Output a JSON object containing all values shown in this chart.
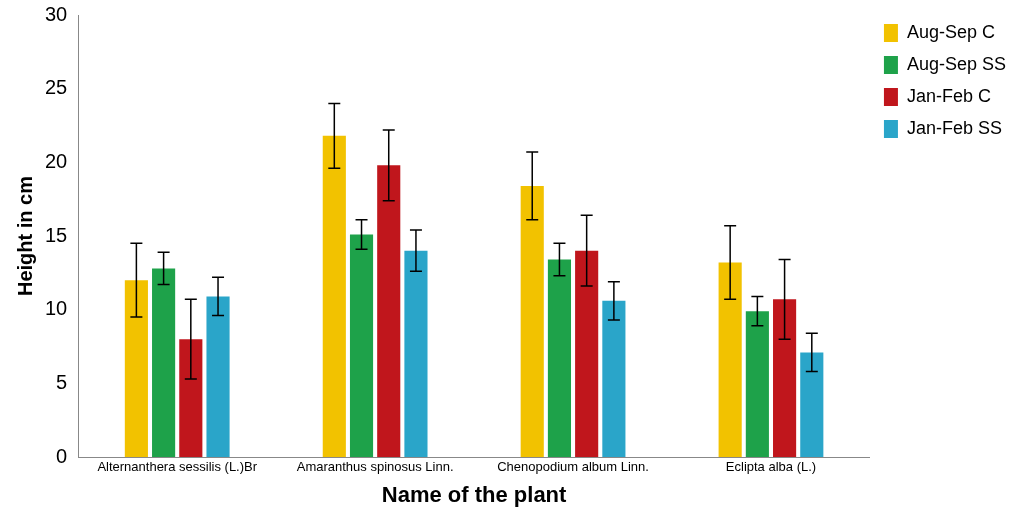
{
  "chart_data": {
    "type": "bar",
    "xlabel": "Name of the plant",
    "ylabel": "Height in cm",
    "categories": [
      "Alternanthera sessilis (L.)Br",
      "Amaranthus spinosus Linn.",
      "Chenopodium album Linn.",
      "Eclipta alba (L.)"
    ],
    "series": [
      {
        "name": "Aug-Sep C",
        "color": "#f2c200",
        "values": [
          12.0,
          21.8,
          18.4,
          13.2
        ],
        "errors": [
          2.5,
          2.2,
          2.3,
          2.5
        ]
      },
      {
        "name": "Aug-Sep SS",
        "color": "#1ea24a",
        "values": [
          12.8,
          15.1,
          13.4,
          9.9
        ],
        "errors": [
          1.1,
          1.0,
          1.1,
          1.0
        ]
      },
      {
        "name": "Jan-Feb C",
        "color": "#c0161c",
        "values": [
          8.0,
          19.8,
          14.0,
          10.7
        ],
        "errors": [
          2.7,
          2.4,
          2.4,
          2.7
        ]
      },
      {
        "name": "Jan-Feb SS",
        "color": "#2aa5c9",
        "values": [
          10.9,
          14.0,
          10.6,
          7.1
        ],
        "errors": [
          1.3,
          1.4,
          1.3,
          1.3
        ]
      }
    ],
    "ylim": [
      0,
      30
    ],
    "yticks": [
      0,
      5,
      10,
      15,
      20,
      25,
      30
    ],
    "grid": false,
    "legend": "top right"
  }
}
